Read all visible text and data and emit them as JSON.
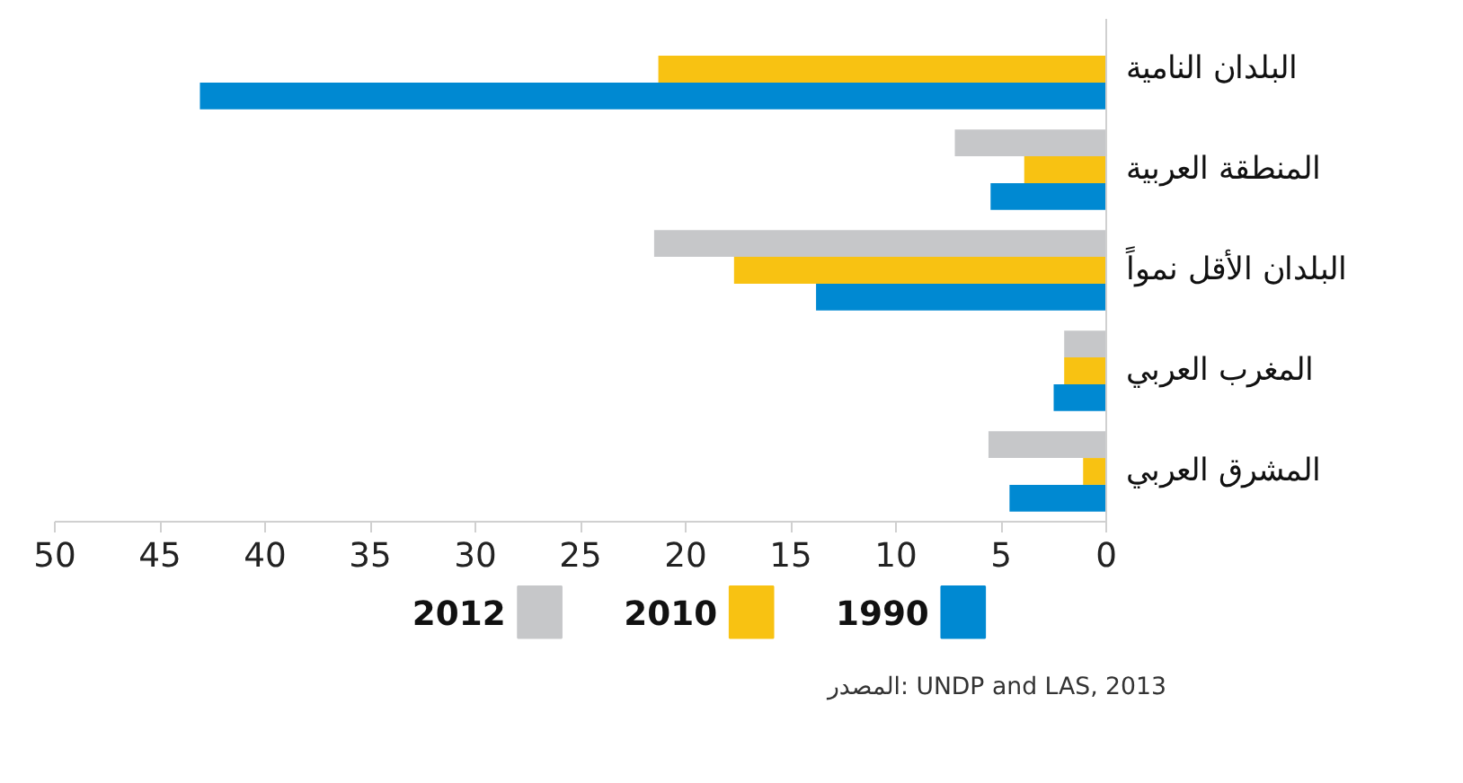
{
  "chart_data": {
    "type": "bar",
    "orientation": "horizontal",
    "categories": [
      "البلدان النامية",
      "المنطقة العربية",
      "البلدان الأقل نمواً",
      "المغرب العربي",
      "المشرق العربي"
    ],
    "series": [
      {
        "name": "2012",
        "color": "#c6c7c9",
        "values": [
          null,
          7.2,
          21.5,
          2.0,
          5.6
        ]
      },
      {
        "name": "2010",
        "color": "#f8c212",
        "values": [
          21.3,
          3.9,
          17.7,
          2.0,
          1.1
        ]
      },
      {
        "name": "1990",
        "color": "#0089d2",
        "values": [
          43.1,
          5.5,
          13.8,
          2.5,
          4.6
        ]
      }
    ],
    "xlim": [
      50,
      0
    ],
    "xticks": [
      50,
      45,
      40,
      35,
      30,
      25,
      20,
      15,
      10,
      5,
      0
    ],
    "grid": false,
    "legend": "bottom",
    "annotations": [
      "المصدر: UNDP and LAS, 2013"
    ]
  }
}
